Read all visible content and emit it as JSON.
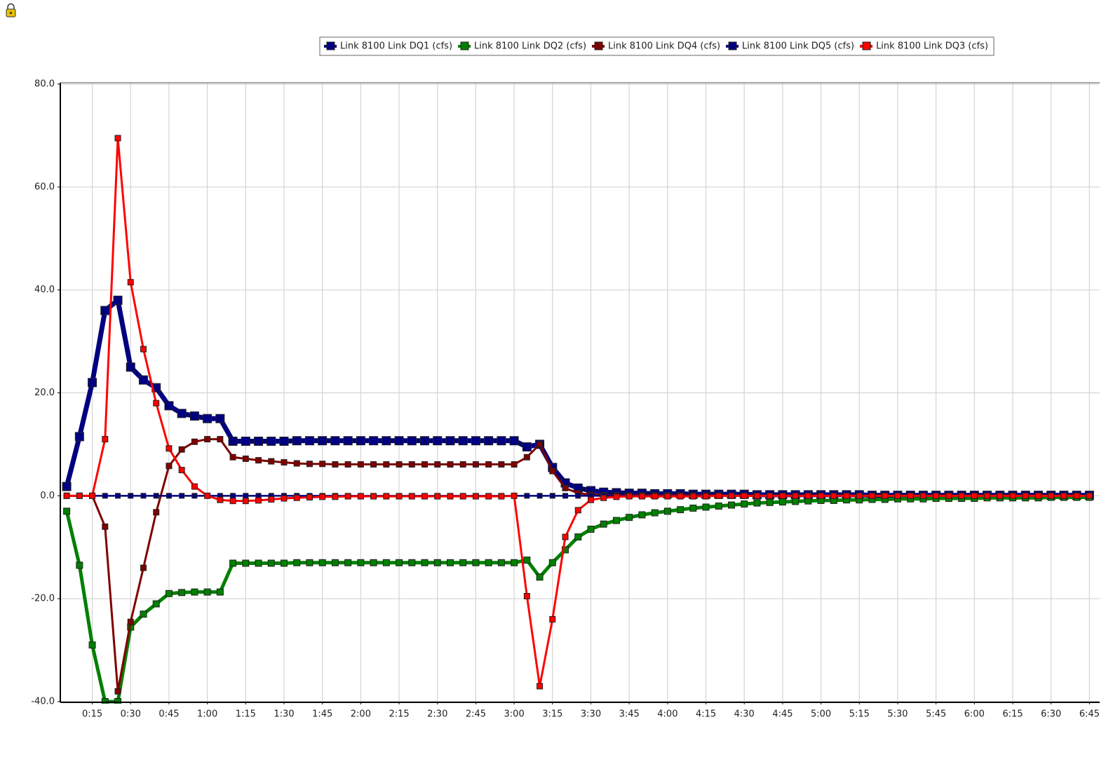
{
  "chart_data": {
    "type": "line",
    "x": [
      5,
      10,
      15,
      20,
      25,
      30,
      35,
      40,
      45,
      50,
      55,
      60,
      65,
      70,
      75,
      80,
      85,
      90,
      95,
      100,
      105,
      110,
      115,
      120,
      125,
      130,
      135,
      140,
      145,
      150,
      155,
      160,
      165,
      170,
      175,
      180,
      185,
      190,
      195,
      200,
      205,
      210,
      215,
      220,
      225,
      230,
      235,
      240,
      245,
      250,
      255,
      260,
      265,
      270,
      275,
      280,
      285,
      290,
      295,
      300,
      305,
      310,
      315,
      320,
      325,
      330,
      335,
      340,
      345,
      350,
      355,
      360,
      365,
      370,
      375,
      380,
      385,
      390,
      395,
      400,
      405
    ],
    "xlim": [
      2.5,
      409
    ],
    "xticks": [
      {
        "value": 15,
        "label": "0:15"
      },
      {
        "value": 30,
        "label": "0:30"
      },
      {
        "value": 45,
        "label": "0:45"
      },
      {
        "value": 60,
        "label": "1:00"
      },
      {
        "value": 75,
        "label": "1:15"
      },
      {
        "value": 90,
        "label": "1:30"
      },
      {
        "value": 105,
        "label": "1:45"
      },
      {
        "value": 120,
        "label": "2:00"
      },
      {
        "value": 135,
        "label": "2:15"
      },
      {
        "value": 150,
        "label": "2:30"
      },
      {
        "value": 165,
        "label": "2:45"
      },
      {
        "value": 180,
        "label": "3:00"
      },
      {
        "value": 195,
        "label": "3:15"
      },
      {
        "value": 210,
        "label": "3:30"
      },
      {
        "value": 225,
        "label": "3:45"
      },
      {
        "value": 240,
        "label": "4:00"
      },
      {
        "value": 255,
        "label": "4:15"
      },
      {
        "value": 270,
        "label": "4:30"
      },
      {
        "value": 285,
        "label": "4:45"
      },
      {
        "value": 300,
        "label": "5:00"
      },
      {
        "value": 315,
        "label": "5:15"
      },
      {
        "value": 330,
        "label": "5:30"
      },
      {
        "value": 345,
        "label": "5:45"
      },
      {
        "value": 360,
        "label": "6:00"
      },
      {
        "value": 375,
        "label": "6:15"
      },
      {
        "value": 390,
        "label": "6:30"
      },
      {
        "value": 405,
        "label": "6:45"
      }
    ],
    "ylim": [
      -40,
      80
    ],
    "yticks": [
      {
        "value": -40,
        "label": "-40.0"
      },
      {
        "value": -20,
        "label": "-20.0"
      },
      {
        "value": 0,
        "label": "0.0"
      },
      {
        "value": 20,
        "label": "20.0"
      },
      {
        "value": 40,
        "label": "40.0"
      },
      {
        "value": 60,
        "label": "60.0"
      },
      {
        "value": 80,
        "label": "80.0"
      }
    ],
    "grid": true,
    "legend": "top",
    "series": [
      {
        "name": "Link 8100 Link DQ1 (cfs)",
        "color": "#000080",
        "values": [
          1.8,
          11.5,
          22,
          36,
          38,
          25,
          22.5,
          21,
          17.5,
          16,
          15.5,
          15,
          15,
          10.6,
          10.6,
          10.6,
          10.6,
          10.6,
          10.7,
          10.7,
          10.7,
          10.7,
          10.7,
          10.7,
          10.7,
          10.7,
          10.7,
          10.7,
          10.7,
          10.7,
          10.7,
          10.7,
          10.7,
          10.7,
          10.7,
          10.7,
          9.5,
          10,
          5.5,
          2.5,
          1.5,
          1,
          0.7,
          0.6,
          0.5,
          0.5,
          0.4,
          0.4,
          0.4,
          0.3,
          0.3,
          0.3,
          0.3,
          0.3,
          0.2,
          0.2,
          0.2,
          0.2,
          0.2,
          0.2,
          0.2,
          0.2,
          0.2,
          0.1,
          0.1,
          0.1,
          0.1,
          0.1,
          0.1,
          0.1,
          0.1,
          0.1,
          0.1,
          0.1,
          0.1,
          0.1,
          0.1,
          0.1,
          0.1,
          0.1,
          0.1
        ]
      },
      {
        "name": "Link 8100 Link DQ2 (cfs)",
        "color": "#008000",
        "values": [
          -3,
          -13.5,
          -29,
          -40,
          -40,
          -25.5,
          -23,
          -21,
          -19,
          -18.8,
          -18.7,
          -18.7,
          -18.7,
          -13.1,
          -13.1,
          -13.1,
          -13.1,
          -13.1,
          -13,
          -13,
          -13,
          -13,
          -13,
          -13,
          -13,
          -13,
          -13,
          -13,
          -13,
          -13,
          -13,
          -13,
          -13,
          -13,
          -13,
          -13,
          -12.5,
          -15.8,
          -13,
          -10.5,
          -8,
          -6.5,
          -5.5,
          -4.8,
          -4.2,
          -3.7,
          -3.3,
          -3,
          -2.7,
          -2.4,
          -2.2,
          -2,
          -1.8,
          -1.6,
          -1.4,
          -1.3,
          -1.2,
          -1.1,
          -1,
          -0.9,
          -0.9,
          -0.8,
          -0.8,
          -0.7,
          -0.7,
          -0.6,
          -0.6,
          -0.6,
          -0.5,
          -0.5,
          -0.5,
          -0.5,
          -0.4,
          -0.4,
          -0.4,
          -0.4,
          -0.4,
          -0.3,
          -0.3,
          -0.3,
          -0.3
        ]
      },
      {
        "name": "Link 8100 Link DQ4 (cfs)",
        "color": "#800000",
        "values": [
          0,
          0,
          0,
          -6,
          -38,
          -24.5,
          -14,
          -3.2,
          5.8,
          9,
          10.5,
          11,
          11,
          7.5,
          7.2,
          6.9,
          6.7,
          6.5,
          6.3,
          6.2,
          6.2,
          6.1,
          6.1,
          6.1,
          6.1,
          6.1,
          6.1,
          6.1,
          6.1,
          6.1,
          6.1,
          6.1,
          6.1,
          6.1,
          6.1,
          6.1,
          7.5,
          10,
          4.8,
          1.5,
          0.5,
          0.2,
          0.1,
          0.1,
          0.1,
          0.1,
          0.1,
          0.1,
          0.1,
          0.1,
          0.1,
          0,
          0,
          0,
          0,
          0,
          0,
          0,
          0,
          0,
          0,
          0,
          0,
          0,
          0,
          0,
          0,
          0,
          0,
          0,
          0,
          0,
          0,
          0,
          0,
          0,
          0,
          0,
          0,
          0,
          0
        ]
      },
      {
        "name": "Link 8100 Link DQ5 (cfs)",
        "color": "#000080",
        "values": [
          0,
          0,
          0,
          0,
          0,
          0,
          0,
          0,
          0,
          0,
          0,
          0,
          0,
          0,
          0,
          0,
          0,
          0,
          0,
          0,
          0,
          0,
          0,
          0,
          0,
          0,
          0,
          0,
          0,
          0,
          0,
          0,
          0,
          0,
          0,
          0,
          0,
          0,
          0,
          0,
          0,
          0,
          0,
          0,
          0,
          0,
          0,
          0,
          0,
          0,
          0,
          0,
          0,
          0,
          0,
          0,
          0,
          0,
          0,
          0,
          0,
          0,
          0,
          0,
          0,
          0,
          0,
          0,
          0,
          0,
          0,
          0,
          0,
          0,
          0,
          0,
          0,
          0,
          0,
          0,
          0
        ]
      },
      {
        "name": "Link 8100 Link DQ3 (cfs)",
        "color": "#ff0000",
        "values": [
          0,
          0,
          0,
          11,
          69.5,
          41.5,
          28.5,
          18,
          9.2,
          5,
          1.8,
          0,
          -0.8,
          -1,
          -1,
          -0.9,
          -0.7,
          -0.5,
          -0.4,
          -0.3,
          -0.2,
          -0.2,
          -0.1,
          -0.1,
          -0.1,
          -0.1,
          -0.1,
          -0.1,
          -0.1,
          -0.1,
          -0.1,
          -0.1,
          -0.1,
          -0.1,
          -0.1,
          0,
          -19.5,
          -37,
          -24,
          -8,
          -2.8,
          -0.8,
          -0.4,
          -0.2,
          -0.1,
          -0.1,
          -0.1,
          -0.1,
          -0.1,
          -0.1,
          -0.1,
          0,
          0,
          0,
          0,
          0,
          0,
          0,
          0,
          0,
          0,
          0,
          0,
          0,
          0,
          0,
          0,
          0,
          0,
          0,
          0,
          0,
          0,
          0,
          0,
          0,
          0,
          0,
          0,
          0,
          0
        ]
      }
    ]
  }
}
